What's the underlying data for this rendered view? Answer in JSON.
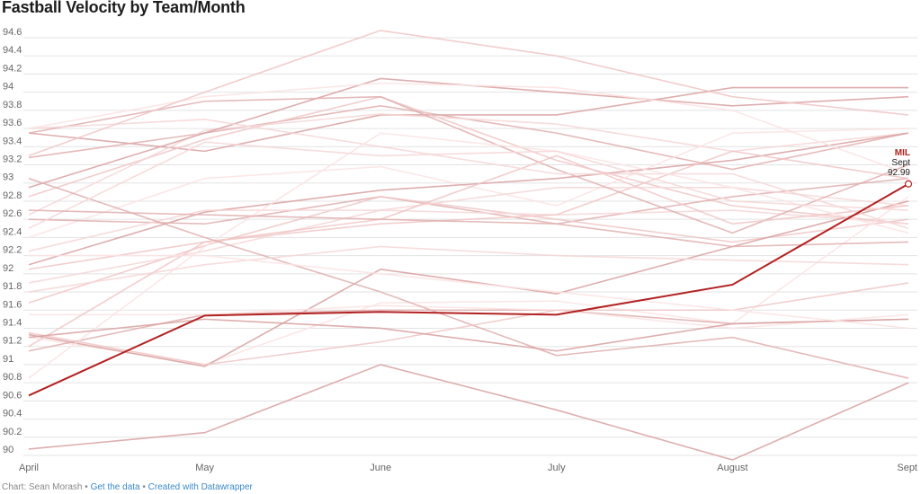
{
  "chart_data": {
    "type": "line",
    "title": "Fastball Velocity by Team/Month",
    "xlabel": "",
    "ylabel": "",
    "categories": [
      "April",
      "May",
      "June",
      "July",
      "August",
      "Sept"
    ],
    "ylim": [
      90,
      94.6
    ],
    "yticks": [
      "90",
      "90.2",
      "90.4",
      "90.6",
      "90.8",
      "91",
      "91.2",
      "91.4",
      "91.6",
      "91.8",
      "92",
      "92.2",
      "92.4",
      "92.6",
      "92.8",
      "93",
      "93.2",
      "93.4",
      "93.6",
      "93.8",
      "94",
      "94.2",
      "94.4",
      "94.6"
    ],
    "grid": true,
    "highlight": {
      "name": "MIL",
      "color": "#b22222",
      "values": [
        90.66,
        91.54,
        91.58,
        91.55,
        91.88,
        92.99
      ],
      "label_month": "Sept",
      "label_value": "92.99"
    },
    "series": [
      {
        "values": [
          93.55,
          93.35,
          93.75,
          93.75,
          94.05,
          94.05
        ]
      },
      {
        "values": [
          93.28,
          93.55,
          93.85,
          93.55,
          93.15,
          93.55
        ]
      },
      {
        "values": [
          92.85,
          93.48,
          93.95,
          93.25,
          92.75,
          92.55
        ]
      },
      {
        "values": [
          92.65,
          93.58,
          93.76,
          93.65,
          93.35,
          93.55
        ]
      },
      {
        "values": [
          92.4,
          93.05,
          93.18,
          92.75,
          93.55,
          93.6
        ]
      },
      {
        "values": [
          92.1,
          92.68,
          92.92,
          93.05,
          93.25,
          93.55
        ]
      },
      {
        "values": [
          92.6,
          92.55,
          92.85,
          92.55,
          92.85,
          93.05
        ]
      },
      {
        "values": [
          91.68,
          92.31,
          92.85,
          92.6,
          92.35,
          92.6
        ]
      },
      {
        "values": [
          92.25,
          92.7,
          92.7,
          92.65,
          92.7,
          92.55
        ]
      },
      {
        "values": [
          91.3,
          91.0,
          91.68,
          91.7,
          91.45,
          92.85
        ]
      },
      {
        "values": [
          91.33,
          90.98,
          92.05,
          91.78,
          92.3,
          92.8
        ]
      },
      {
        "values": [
          91.15,
          91.55,
          91.6,
          91.6,
          91.45,
          91.5
        ]
      },
      {
        "values": [
          92.05,
          92.35,
          92.55,
          92.65,
          93.35,
          93.05
        ]
      },
      {
        "values": [
          91.9,
          92.25,
          92.7,
          92.95,
          92.95,
          92.75
        ]
      },
      {
        "values": [
          91.55,
          91.55,
          91.65,
          91.6,
          91.4,
          91.55
        ]
      },
      {
        "values": [
          92.95,
          93.55,
          94.15,
          94.0,
          93.85,
          93.95
        ]
      },
      {
        "values": [
          93.55,
          93.9,
          93.95,
          93.15,
          92.45,
          93.2
        ]
      },
      {
        "values": [
          91.2,
          92.35,
          92.6,
          93.3,
          92.55,
          92.75
        ]
      },
      {
        "values": [
          93.6,
          93.7,
          93.4,
          93.1,
          93.1,
          92.5
        ]
      },
      {
        "values": [
          90.85,
          92.3,
          93.55,
          93.35,
          92.95,
          92.45
        ]
      },
      {
        "values": [
          90.07,
          90.25,
          91.0,
          90.5,
          89.95,
          90.8
        ]
      },
      {
        "values": [
          93.05,
          92.4,
          91.8,
          91.1,
          91.3,
          90.85
        ]
      },
      {
        "values": [
          91.35,
          91.0,
          91.25,
          91.6,
          91.6,
          91.9
        ]
      },
      {
        "values": [
          92.5,
          93.45,
          93.3,
          93.35,
          92.8,
          92.7
        ]
      },
      {
        "values": [
          93.6,
          93.95,
          94.1,
          94.05,
          93.8,
          93.1
        ]
      },
      {
        "values": [
          91.3,
          91.5,
          91.4,
          91.15,
          91.45,
          91.5
        ]
      },
      {
        "values": [
          92.7,
          92.65,
          92.6,
          92.55,
          92.3,
          92.35
        ]
      },
      {
        "values": [
          93.3,
          94.0,
          94.68,
          94.4,
          93.95,
          93.75
        ]
      },
      {
        "values": [
          91.8,
          92.1,
          92.3,
          92.2,
          92.15,
          92.1
        ]
      },
      {
        "values": [
          92.2,
          92.2,
          92.0,
          91.8,
          91.6,
          91.4
        ]
      }
    ]
  },
  "footer": {
    "source": "Chart: Sean Morash",
    "sep1": " • ",
    "data_link": "Get the data",
    "sep2": " • ",
    "created_link": "Created with Datawrapper"
  }
}
